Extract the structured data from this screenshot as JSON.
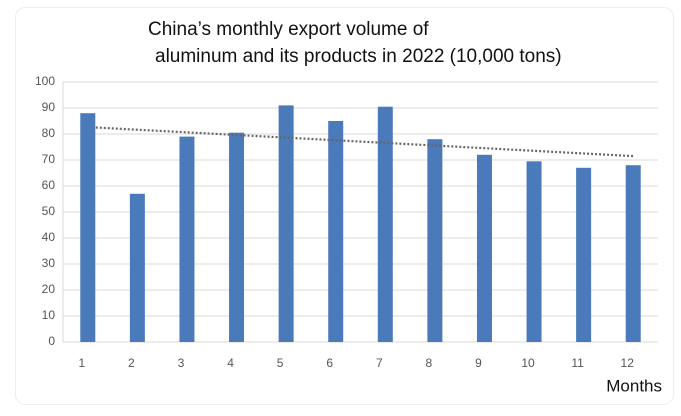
{
  "chart_data": {
    "type": "bar",
    "title": [
      "China’s monthly export volume of",
      "aluminum and its products in 2022 (10,000 tons)"
    ],
    "x_label": "Months",
    "categories": [
      "1",
      "2",
      "3",
      "4",
      "5",
      "6",
      "7",
      "8",
      "9",
      "10",
      "11",
      "12"
    ],
    "values": [
      88,
      57,
      79,
      80.5,
      91,
      85,
      90.5,
      78,
      72,
      69.5,
      67,
      68
    ],
    "color": "#4a7ab9",
    "ylim": [
      0,
      100
    ],
    "yticks": [
      0,
      10,
      20,
      30,
      40,
      50,
      60,
      70,
      80,
      90,
      100
    ],
    "grid": true,
    "trendline": {
      "values": [
        82.5,
        71.5
      ],
      "color": "#666"
    }
  }
}
